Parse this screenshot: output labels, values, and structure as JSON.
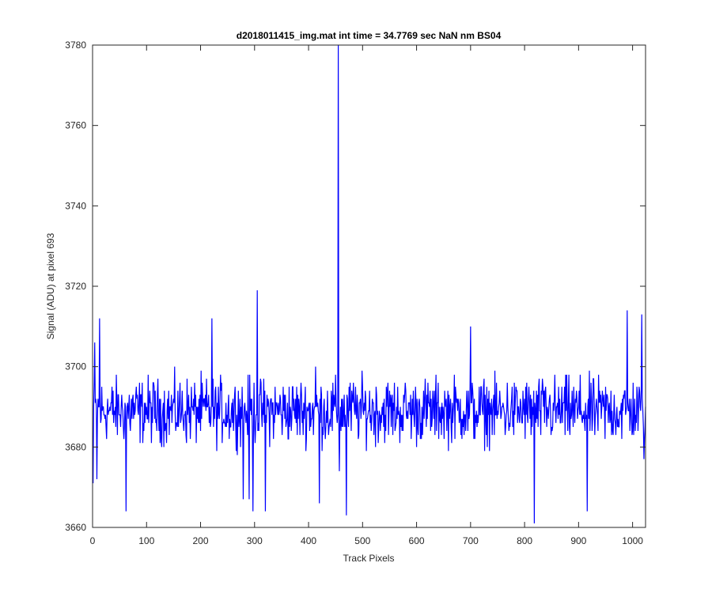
{
  "chart_data": {
    "type": "line",
    "title": "d2018011415_img.mat int time = 34.7769 sec  NaN nm BS04",
    "xlabel": "Track Pixels",
    "ylabel": "Signal (ADU) at pixel 693",
    "xlim": [
      0,
      1024
    ],
    "ylim": [
      3660,
      3780
    ],
    "xticks": [
      0,
      100,
      200,
      300,
      400,
      500,
      600,
      700,
      800,
      900,
      1000
    ],
    "yticks": [
      3660,
      3680,
      3700,
      3720,
      3740,
      3760,
      3780
    ],
    "grid": false,
    "line_color": "#0000ff",
    "series": [
      {
        "x_start": 1,
        "x_step": 1,
        "baseline": 3689,
        "noise_amplitude": 8,
        "points": [
          [
            1,
            3671
          ],
          [
            4,
            3706
          ],
          [
            8,
            3672
          ],
          [
            13,
            3712
          ],
          [
            62,
            3664
          ],
          [
            221,
            3712
          ],
          [
            279,
            3667
          ],
          [
            290,
            3667
          ],
          [
            297,
            3664
          ],
          [
            305,
            3719
          ],
          [
            320,
            3664
          ],
          [
            413,
            3700
          ],
          [
            420,
            3666
          ],
          [
            455,
            3780
          ],
          [
            457,
            3674
          ],
          [
            470,
            3663
          ],
          [
            700,
            3710
          ],
          [
            818,
            3661
          ],
          [
            916,
            3664
          ],
          [
            990,
            3714
          ],
          [
            1017,
            3713
          ],
          [
            1021,
            3677
          ],
          [
            1024,
            3690
          ]
        ]
      }
    ]
  }
}
